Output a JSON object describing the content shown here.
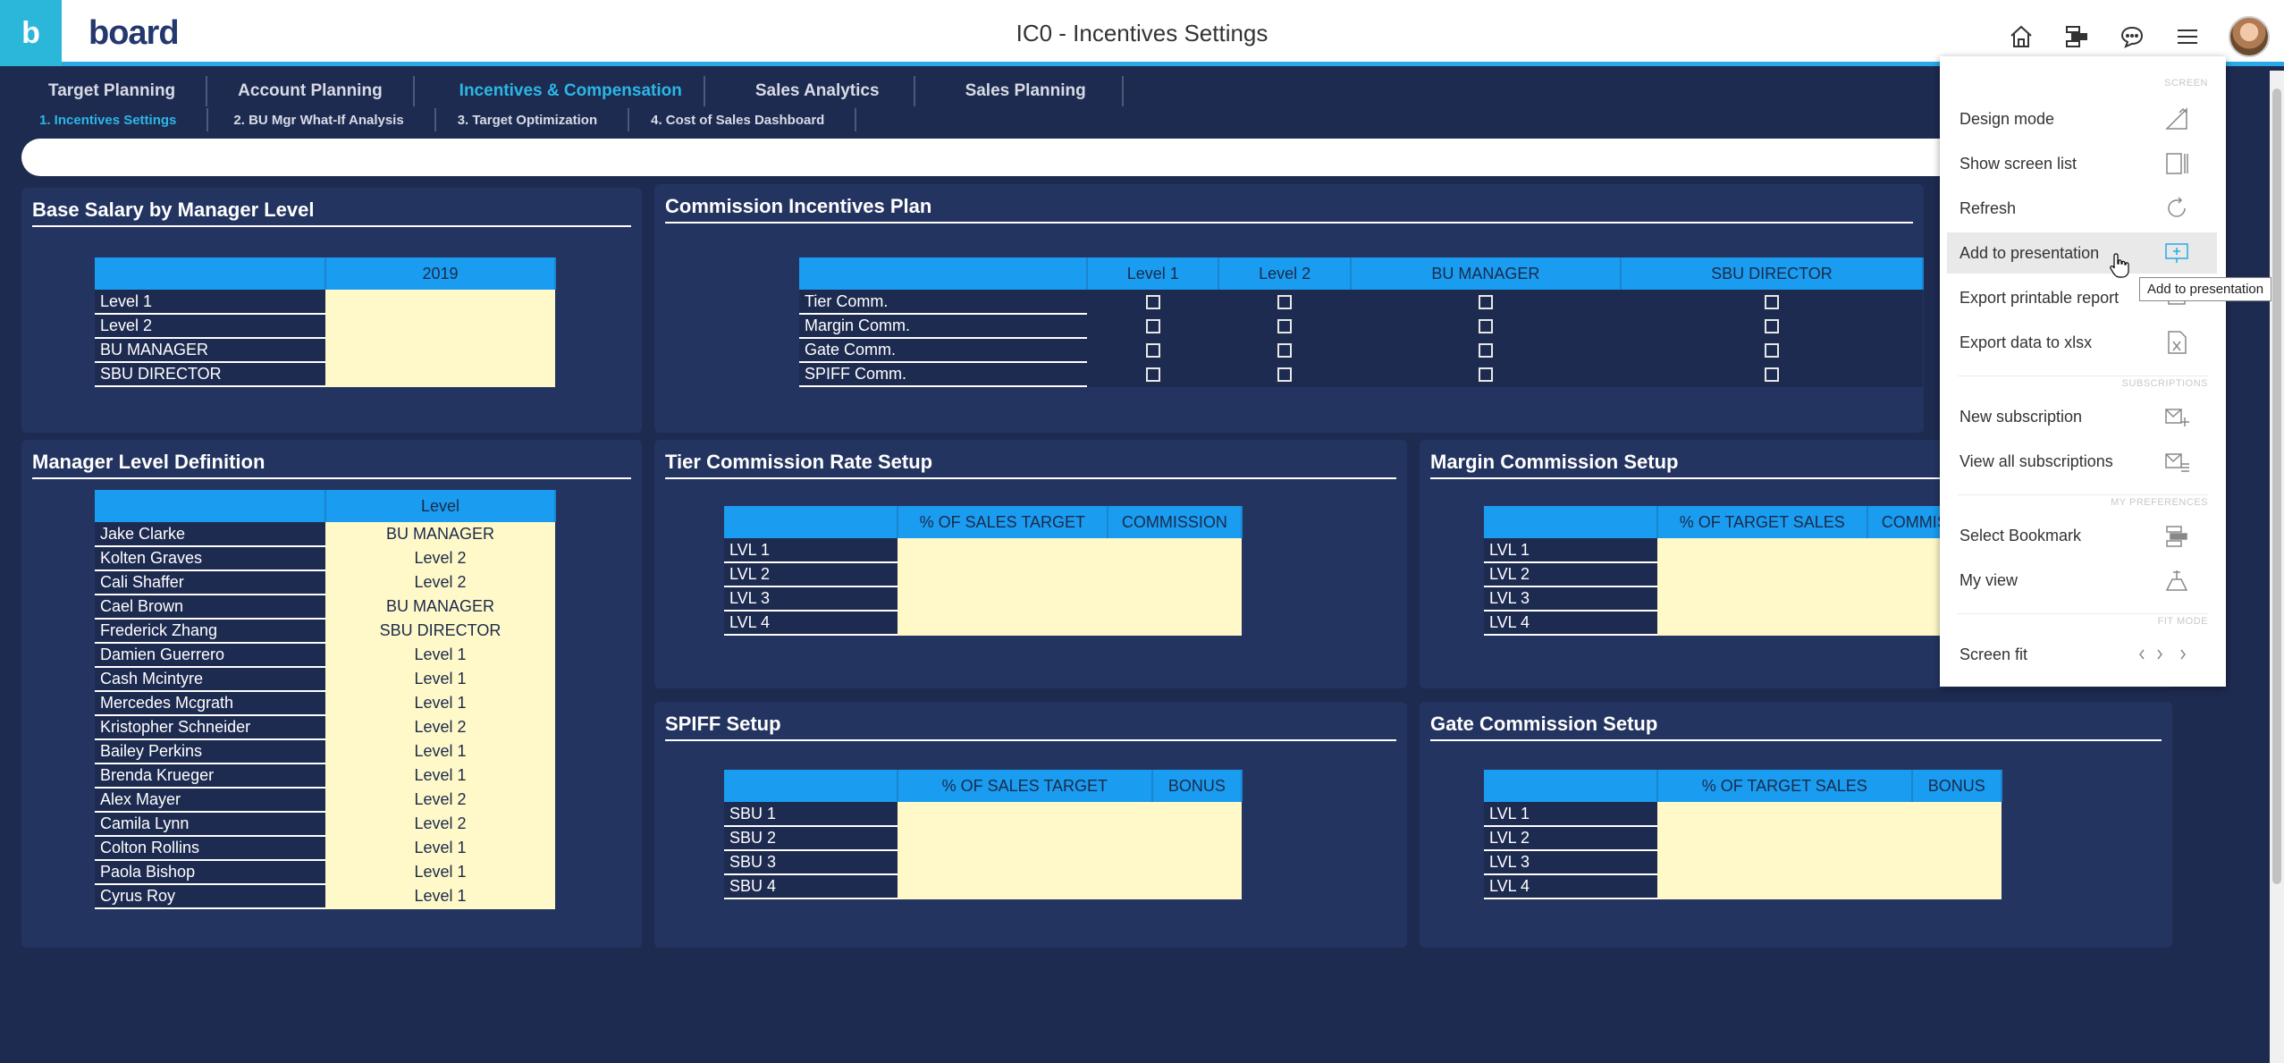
{
  "app": {
    "brand": "board",
    "title": "IC0 - Incentives Settings"
  },
  "nav": {
    "tabs": [
      "Target Planning",
      "Account Planning",
      "Incentives & Compensation",
      "Sales Analytics",
      "Sales Planning"
    ],
    "subtabs": [
      "1. Incentives Settings",
      "2. BU Mgr What-If Analysis",
      "3. Target Optimization",
      "4. Cost of Sales Dashboard"
    ]
  },
  "base_salary": {
    "title": "Base Salary by Manager Level",
    "column": "2019",
    "rows": [
      "Level 1",
      "Level 2",
      "BU MANAGER",
      "SBU DIRECTOR"
    ]
  },
  "commission_plan": {
    "title": "Commission Incentives Plan",
    "columns": [
      "Level 1",
      "Level 2",
      "BU MANAGER",
      "SBU DIRECTOR"
    ],
    "rows": [
      "Tier Comm.",
      "Margin Comm.",
      "Gate Comm.",
      "SPIFF Comm."
    ]
  },
  "manager_levels": {
    "title": "Manager Level Definition",
    "column": "Level",
    "rows": [
      {
        "name": "Jake Clarke",
        "level": "BU MANAGER"
      },
      {
        "name": "Kolten Graves",
        "level": "Level 2"
      },
      {
        "name": "Cali Shaffer",
        "level": "Level 2"
      },
      {
        "name": "Cael Brown",
        "level": "BU MANAGER"
      },
      {
        "name": "Frederick Zhang",
        "level": "SBU DIRECTOR"
      },
      {
        "name": "Damien Guerrero",
        "level": "Level 1"
      },
      {
        "name": "Cash Mcintyre",
        "level": "Level 1"
      },
      {
        "name": "Mercedes Mcgrath",
        "level": "Level 1"
      },
      {
        "name": "Kristopher Schneider",
        "level": "Level 2"
      },
      {
        "name": "Bailey Perkins",
        "level": "Level 1"
      },
      {
        "name": "Brenda Krueger",
        "level": "Level 1"
      },
      {
        "name": "Alex Mayer",
        "level": "Level 2"
      },
      {
        "name": "Camila Lynn",
        "level": "Level 2"
      },
      {
        "name": "Colton Rollins",
        "level": "Level 1"
      },
      {
        "name": "Paola Bishop",
        "level": "Level 1"
      },
      {
        "name": "Cyrus Roy",
        "level": "Level 1"
      }
    ]
  },
  "tier_setup": {
    "title": "Tier Commission Rate Setup",
    "columns": [
      "% OF SALES TARGET",
      "COMMISSION"
    ],
    "rows": [
      "LVL 1",
      "LVL 2",
      "LVL 3",
      "LVL 4"
    ]
  },
  "margin_setup": {
    "title": "Margin Commission Setup",
    "columns": [
      "% OF TARGET SALES",
      "COMMISSION"
    ],
    "rows": [
      "LVL 1",
      "LVL 2",
      "LVL 3",
      "LVL 4"
    ]
  },
  "spiff_setup": {
    "title": "SPIFF Setup",
    "columns": [
      "% OF SALES TARGET",
      "BONUS"
    ],
    "rows": [
      "SBU 1",
      "SBU 2",
      "SBU 3",
      "SBU 4"
    ]
  },
  "gate_setup": {
    "title": "Gate Commission Setup",
    "columns": [
      "% OF TARGET SALES",
      "BONUS"
    ],
    "rows": [
      "LVL 1",
      "LVL 2",
      "LVL 3",
      "LVL 4"
    ]
  },
  "menu": {
    "sections": {
      "screen": "SCREEN",
      "subscriptions": "SUBSCRIPTIONS",
      "preferences": "MY PREFERENCES",
      "fit": "FIT MODE"
    },
    "items": {
      "design_mode": "Design mode",
      "show_screen_list": "Show screen list",
      "refresh": "Refresh",
      "add_to_presentation": "Add to presentation",
      "export_printable": "Export printable report",
      "export_xlsx": "Export data to xlsx",
      "new_subscription": "New subscription",
      "view_subscriptions": "View all subscriptions",
      "select_bookmark": "Select Bookmark",
      "my_view": "My view",
      "screen_fit": "Screen fit"
    },
    "tooltip": "Add to presentation"
  },
  "colors": {
    "background": "#1e2b50",
    "panel": "#243461",
    "header_accent": "#29a9e6",
    "table_header": "#1a9cf0",
    "input_cell": "#fff9c9",
    "active_tab": "#2bb7e6"
  }
}
